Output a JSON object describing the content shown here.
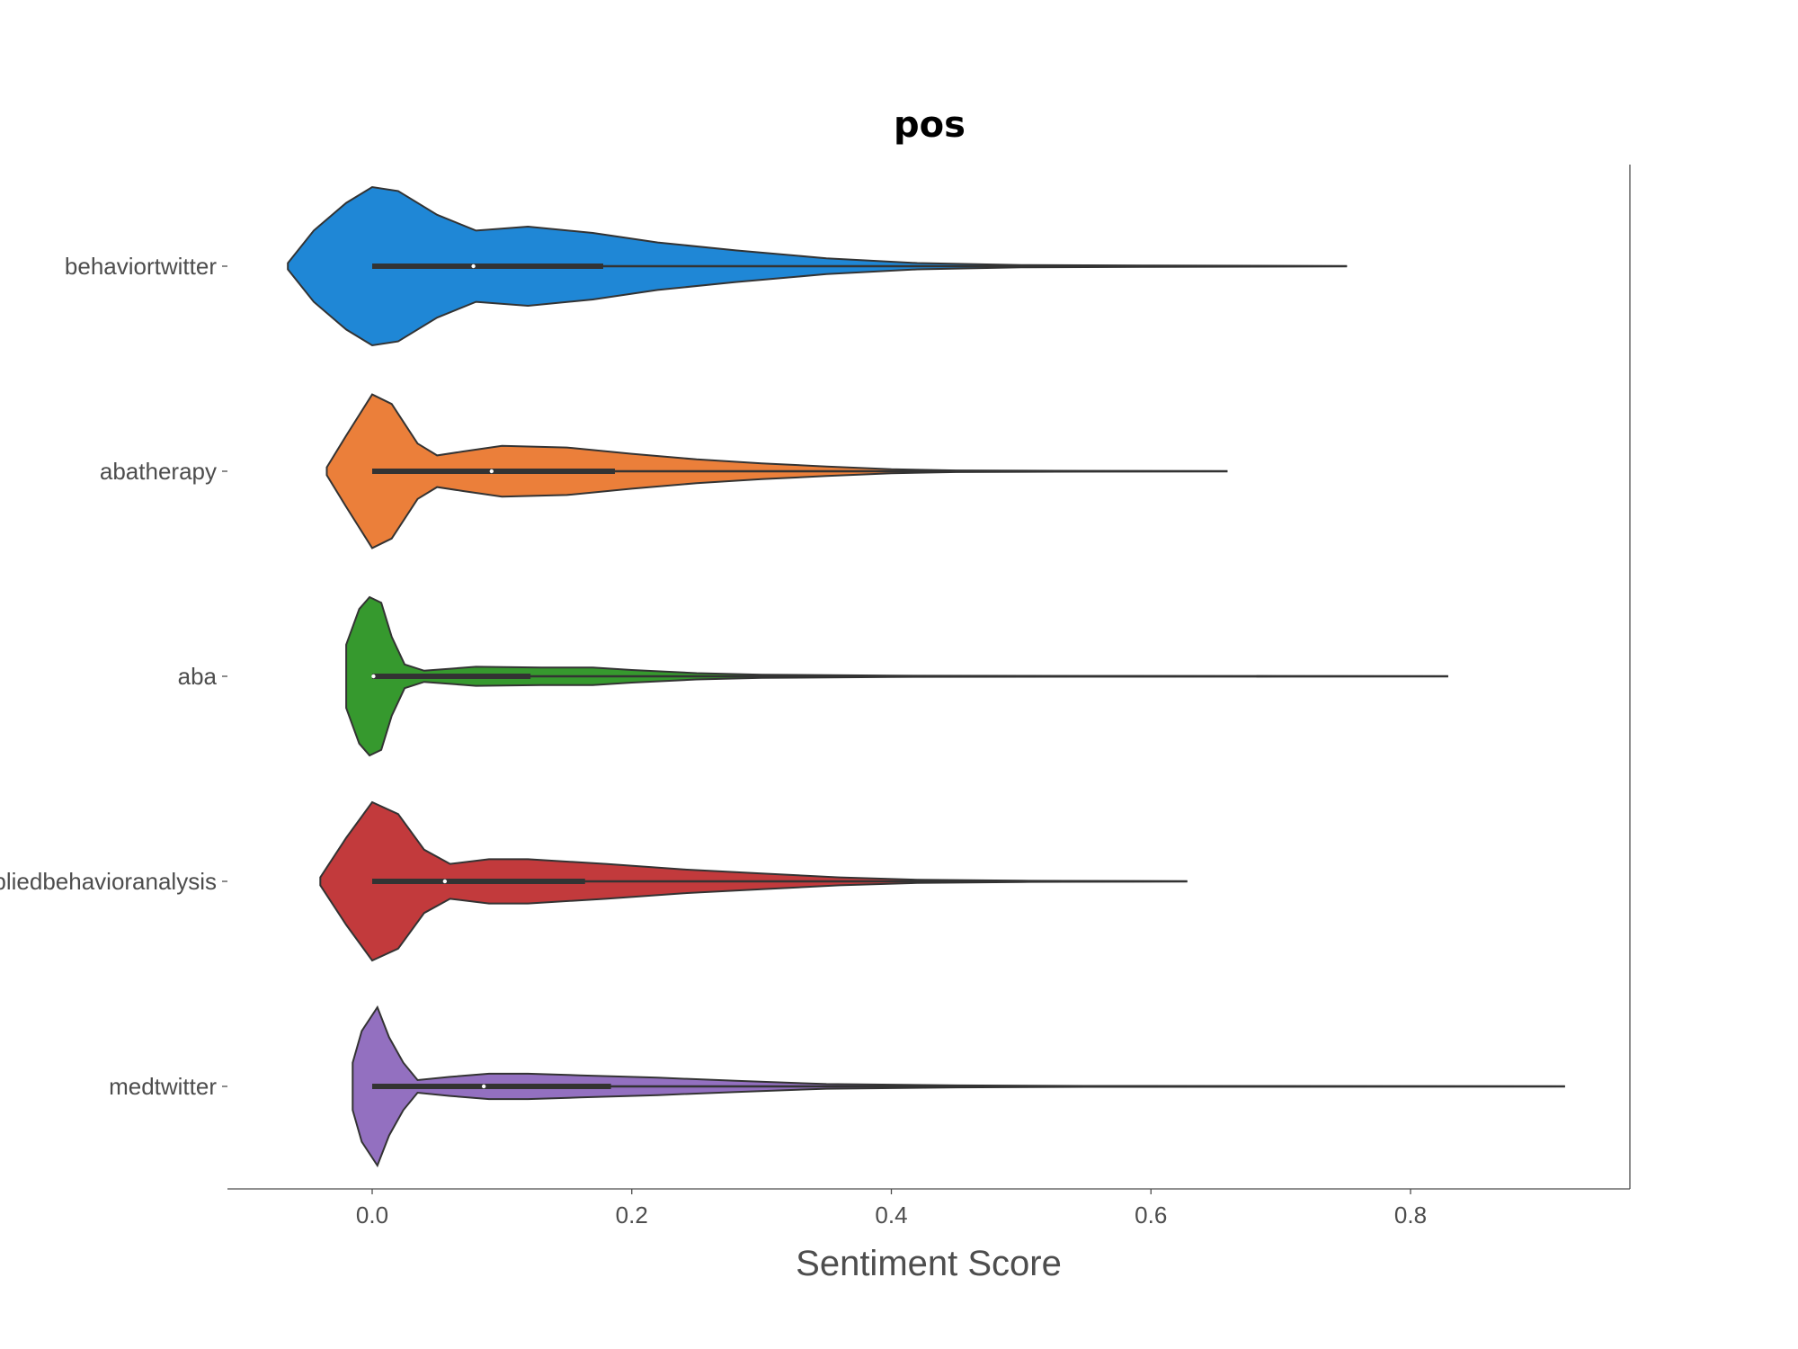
{
  "chart_data": {
    "type": "violin",
    "title": "pos",
    "xlabel": "Sentiment Score",
    "ylabel": "",
    "xlim": [
      -0.14,
      0.97
    ],
    "xticks": [
      "0.0",
      "0.2",
      "0.4",
      "0.6",
      "0.8"
    ],
    "xtick_values": [
      0.0,
      0.2,
      0.4,
      0.6,
      0.8
    ],
    "grid": false,
    "orientation": "horizontal",
    "categories": [
      "behaviortwitter",
      "abatherapy",
      "aba",
      "appliedbehavioranalysis",
      "medtwitter"
    ],
    "series": [
      {
        "name": "behaviortwitter",
        "color": "#1f87d6",
        "min": 0.0,
        "q1": 0.0,
        "median": 0.078,
        "q3": 0.178,
        "max": 0.751,
        "density": [
          [
            -0.065,
            0.04
          ],
          [
            -0.045,
            0.45
          ],
          [
            -0.02,
            0.8
          ],
          [
            0.0,
            1.0
          ],
          [
            0.02,
            0.95
          ],
          [
            0.05,
            0.65
          ],
          [
            0.08,
            0.45
          ],
          [
            0.12,
            0.5
          ],
          [
            0.17,
            0.42
          ],
          [
            0.22,
            0.3
          ],
          [
            0.28,
            0.2
          ],
          [
            0.35,
            0.1
          ],
          [
            0.42,
            0.04
          ],
          [
            0.5,
            0.015
          ],
          [
            0.6,
            0.008
          ],
          [
            0.7,
            0.005
          ],
          [
            0.751,
            0.0
          ]
        ]
      },
      {
        "name": "abatherapy",
        "color": "#eb7f3a",
        "min": 0.0,
        "q1": 0.0,
        "median": 0.092,
        "q3": 0.187,
        "max": 0.659,
        "density": [
          [
            -0.035,
            0.05
          ],
          [
            -0.02,
            0.45
          ],
          [
            0.0,
            0.97
          ],
          [
            0.015,
            0.85
          ],
          [
            0.035,
            0.35
          ],
          [
            0.05,
            0.2
          ],
          [
            0.07,
            0.25
          ],
          [
            0.1,
            0.32
          ],
          [
            0.15,
            0.3
          ],
          [
            0.2,
            0.22
          ],
          [
            0.25,
            0.15
          ],
          [
            0.3,
            0.1
          ],
          [
            0.35,
            0.06
          ],
          [
            0.4,
            0.025
          ],
          [
            0.45,
            0.01
          ],
          [
            0.55,
            0.005
          ],
          [
            0.659,
            0.0
          ]
        ]
      },
      {
        "name": "aba",
        "color": "#36992e",
        "min": 0.0,
        "q1": 0.0,
        "median": 0.001,
        "q3": 0.122,
        "max": 0.829,
        "density": [
          [
            -0.02,
            0.4
          ],
          [
            -0.01,
            0.85
          ],
          [
            -0.002,
            1.0
          ],
          [
            0.007,
            0.93
          ],
          [
            0.015,
            0.5
          ],
          [
            0.025,
            0.15
          ],
          [
            0.04,
            0.07
          ],
          [
            0.08,
            0.12
          ],
          [
            0.13,
            0.11
          ],
          [
            0.17,
            0.11
          ],
          [
            0.2,
            0.08
          ],
          [
            0.25,
            0.04
          ],
          [
            0.3,
            0.02
          ],
          [
            0.4,
            0.008
          ],
          [
            0.55,
            0.005
          ],
          [
            0.7,
            0.003
          ],
          [
            0.829,
            0.0
          ]
        ]
      },
      {
        "name": "appliedbehavioranalysis",
        "color": "#c23a3c",
        "min": 0.0,
        "q1": 0.0,
        "median": 0.056,
        "q3": 0.164,
        "max": 0.628,
        "density": [
          [
            -0.04,
            0.05
          ],
          [
            -0.02,
            0.55
          ],
          [
            0.0,
            1.0
          ],
          [
            0.02,
            0.85
          ],
          [
            0.04,
            0.4
          ],
          [
            0.06,
            0.22
          ],
          [
            0.09,
            0.28
          ],
          [
            0.12,
            0.28
          ],
          [
            0.18,
            0.22
          ],
          [
            0.24,
            0.15
          ],
          [
            0.3,
            0.1
          ],
          [
            0.36,
            0.05
          ],
          [
            0.42,
            0.02
          ],
          [
            0.5,
            0.008
          ],
          [
            0.628,
            0.0
          ]
        ]
      },
      {
        "name": "medtwitter",
        "color": "#9370c0",
        "min": 0.0,
        "q1": 0.0,
        "median": 0.086,
        "q3": 0.184,
        "max": 0.919,
        "density": [
          [
            -0.015,
            0.3
          ],
          [
            -0.008,
            0.7
          ],
          [
            0.004,
            1.0
          ],
          [
            0.013,
            0.62
          ],
          [
            0.024,
            0.3
          ],
          [
            0.035,
            0.08
          ],
          [
            0.06,
            0.12
          ],
          [
            0.09,
            0.16
          ],
          [
            0.12,
            0.16
          ],
          [
            0.16,
            0.14
          ],
          [
            0.22,
            0.11
          ],
          [
            0.28,
            0.07
          ],
          [
            0.35,
            0.03
          ],
          [
            0.45,
            0.012
          ],
          [
            0.55,
            0.006
          ],
          [
            0.7,
            0.004
          ],
          [
            0.919,
            0.0
          ]
        ]
      }
    ]
  }
}
